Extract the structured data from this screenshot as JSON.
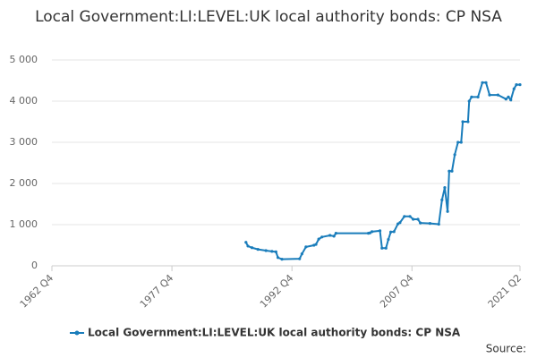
{
  "chart_data": {
    "type": "line",
    "title": "Local Government:LI:LEVEL:UK local authority bonds: CP NSA",
    "source": "Source:",
    "x": [
      1987.0,
      1987.25,
      1987.75,
      1988.5,
      1989.5,
      1990.25,
      1990.75,
      1991.0,
      1991.5,
      1993.7,
      1994.0,
      1994.5,
      1995.5,
      1995.75,
      1996.1,
      1996.5,
      1997.5,
      1998.0,
      1998.25,
      2002.3,
      2002.5,
      2002.75,
      2003.75,
      2004.0,
      2004.5,
      2004.8,
      2005.1,
      2005.5,
      2006.0,
      2006.25,
      2006.8,
      2007.5,
      2007.9,
      2008.5,
      2008.8,
      2010.0,
      2011.1,
      2011.5,
      2011.85,
      2012.2,
      2012.4,
      2012.75,
      2013.1,
      2013.5,
      2013.9,
      2014.1,
      2014.75,
      2014.9,
      2015.2,
      2016.0,
      2016.55,
      2017.0,
      2017.45,
      2018.5,
      2019.5,
      2019.8,
      2020.1,
      2020.5,
      2020.8,
      2021.25
    ],
    "series": [
      {
        "name": "Local Government:LI:LEVEL:UK local authority bonds: CP NSA",
        "color": "#1a7dbb",
        "values": [
          570,
          480,
          440,
          400,
          370,
          350,
          340,
          200,
          160,
          170,
          290,
          460,
          500,
          520,
          650,
          700,
          740,
          720,
          790,
          790,
          800,
          830,
          850,
          430,
          430,
          640,
          820,
          830,
          1020,
          1050,
          1200,
          1200,
          1130,
          1130,
          1040,
          1030,
          1010,
          1600,
          1900,
          1320,
          2300,
          2300,
          2700,
          3000,
          3000,
          3500,
          3500,
          4000,
          4100,
          4100,
          4450,
          4450,
          4150,
          4150,
          4050,
          4100,
          4030,
          4300,
          4400,
          4400
        ]
      }
    ],
    "xlim": [
      1962.75,
      2021.25
    ],
    "xticks": [
      {
        "value": 1962.75,
        "label": "1962 Q4"
      },
      {
        "value": 1977.75,
        "label": "1977 Q4"
      },
      {
        "value": 1992.75,
        "label": "1992 Q4"
      },
      {
        "value": 2007.75,
        "label": "2007 Q4"
      },
      {
        "value": 2021.25,
        "label": "2021 Q2"
      }
    ],
    "ylim": [
      0,
      5000
    ],
    "yticks": [
      0,
      {
        "value": 1000,
        "label": "1 000"
      },
      {
        "value": 2000,
        "label": "2 000"
      },
      {
        "value": 3000,
        "label": "3 000"
      },
      {
        "value": 4000,
        "label": "4 000"
      },
      {
        "value": 5000,
        "label": "5 000"
      }
    ],
    "grid": true,
    "legend": "bottom"
  }
}
